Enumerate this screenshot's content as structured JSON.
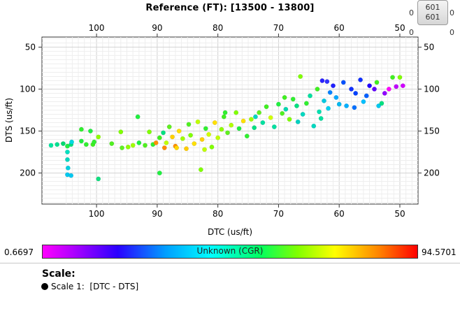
{
  "title": "Reference (FT): [13500 - 13800]",
  "widget": {
    "counter_top": "601",
    "counter_bottom": "601",
    "side_left": "0",
    "side_right": "0"
  },
  "chart_data": {
    "type": "scatter",
    "xlabel": "DTC (us/ft)",
    "ylabel": "DTS (us/ft)",
    "xlim": [
      109,
      47
    ],
    "ylim": [
      237,
      38
    ],
    "x_ticks": [
      100,
      90,
      80,
      70,
      60,
      50
    ],
    "y_ticks": [
      50,
      100,
      150,
      200
    ],
    "grid": true,
    "points": [
      {
        "x": 107.5,
        "y": 167,
        "c": "#00e6a0"
      },
      {
        "x": 106.5,
        "y": 166,
        "c": "#00e090"
      },
      {
        "x": 105.5,
        "y": 165,
        "c": "#00d870"
      },
      {
        "x": 104.8,
        "y": 168,
        "c": "#20f040"
      },
      {
        "x": 104.2,
        "y": 166,
        "c": "#00e080"
      },
      {
        "x": 104.8,
        "y": 175,
        "c": "#00e0c0"
      },
      {
        "x": 104.8,
        "y": 184,
        "c": "#00d8c0"
      },
      {
        "x": 104.7,
        "y": 194,
        "c": "#00d0e0"
      },
      {
        "x": 104.8,
        "y": 202,
        "c": "#00c8f0"
      },
      {
        "x": 104.2,
        "y": 203,
        "c": "#00c8f0"
      },
      {
        "x": 104.1,
        "y": 163,
        "c": "#00d8e0"
      },
      {
        "x": 102.5,
        "y": 162,
        "c": "#20f040"
      },
      {
        "x": 102.5,
        "y": 148,
        "c": "#30f030"
      },
      {
        "x": 101.7,
        "y": 166,
        "c": "#30f030"
      },
      {
        "x": 101.0,
        "y": 150,
        "c": "#20f040"
      },
      {
        "x": 100.6,
        "y": 166,
        "c": "#40f020"
      },
      {
        "x": 100.4,
        "y": 163,
        "c": "#30f030"
      },
      {
        "x": 99.7,
        "y": 207,
        "c": "#10e080"
      },
      {
        "x": 99.7,
        "y": 157,
        "c": "#90ff00"
      },
      {
        "x": 97.5,
        "y": 165,
        "c": "#50f020"
      },
      {
        "x": 96.0,
        "y": 151,
        "c": "#80ff00"
      },
      {
        "x": 95.8,
        "y": 170,
        "c": "#60f020"
      },
      {
        "x": 94.8,
        "y": 169,
        "c": "#90ff00"
      },
      {
        "x": 94.0,
        "y": 167,
        "c": "#a0ff00"
      },
      {
        "x": 93.2,
        "y": 133,
        "c": "#20f040"
      },
      {
        "x": 93.0,
        "y": 164,
        "c": "#20f040"
      },
      {
        "x": 92.0,
        "y": 167,
        "c": "#50f020"
      },
      {
        "x": 91.3,
        "y": 151,
        "c": "#80ff00"
      },
      {
        "x": 90.7,
        "y": 166,
        "c": "#30f030"
      },
      {
        "x": 90.2,
        "y": 164,
        "c": "#ff9000"
      },
      {
        "x": 89.6,
        "y": 158,
        "c": "#40f020"
      },
      {
        "x": 89.6,
        "y": 200,
        "c": "#20f040"
      },
      {
        "x": 89.0,
        "y": 152,
        "c": "#00e080"
      },
      {
        "x": 88.5,
        "y": 164,
        "c": "#c0ff00"
      },
      {
        "x": 88.0,
        "y": 145,
        "c": "#60f020"
      },
      {
        "x": 87.5,
        "y": 157,
        "c": "#ffd000"
      },
      {
        "x": 87.0,
        "y": 168,
        "c": "#ff9000"
      },
      {
        "x": 86.4,
        "y": 150,
        "c": "#ffe000"
      },
      {
        "x": 85.8,
        "y": 159,
        "c": "#a0ff00"
      },
      {
        "x": 85.2,
        "y": 171,
        "c": "#ffcc00"
      },
      {
        "x": 84.5,
        "y": 155,
        "c": "#80ff00"
      },
      {
        "x": 83.9,
        "y": 165,
        "c": "#ffe000"
      },
      {
        "x": 83.3,
        "y": 139,
        "c": "#c0ff00"
      },
      {
        "x": 82.8,
        "y": 196,
        "c": "#80ff00"
      },
      {
        "x": 82.6,
        "y": 160,
        "c": "#ffd000"
      },
      {
        "x": 82.0,
        "y": 147,
        "c": "#30f030"
      },
      {
        "x": 81.5,
        "y": 154,
        "c": "#d0ff00"
      },
      {
        "x": 81.0,
        "y": 169,
        "c": "#80ff00"
      },
      {
        "x": 80.5,
        "y": 140,
        "c": "#ffe000"
      },
      {
        "x": 80.0,
        "y": 158,
        "c": "#c0ff00"
      },
      {
        "x": 79.4,
        "y": 148,
        "c": "#90ff00"
      },
      {
        "x": 79.0,
        "y": 133,
        "c": "#40f020"
      },
      {
        "x": 78.4,
        "y": 152,
        "c": "#60f020"
      },
      {
        "x": 77.8,
        "y": 143,
        "c": "#b0ff00"
      },
      {
        "x": 77.0,
        "y": 128,
        "c": "#80ff00"
      },
      {
        "x": 76.5,
        "y": 147,
        "c": "#20f040"
      },
      {
        "x": 75.8,
        "y": 138,
        "c": "#ffe000"
      },
      {
        "x": 75.2,
        "y": 156,
        "c": "#30f030"
      },
      {
        "x": 74.5,
        "y": 136,
        "c": "#a0ff00"
      },
      {
        "x": 74.0,
        "y": 146,
        "c": "#00e080"
      },
      {
        "x": 73.2,
        "y": 128,
        "c": "#60f020"
      },
      {
        "x": 72.6,
        "y": 140,
        "c": "#00e0a0"
      },
      {
        "x": 72.0,
        "y": 121,
        "c": "#40f020"
      },
      {
        "x": 71.3,
        "y": 134,
        "c": "#d0ff00"
      },
      {
        "x": 70.7,
        "y": 145,
        "c": "#00e0a0"
      },
      {
        "x": 70.0,
        "y": 118,
        "c": "#20f040"
      },
      {
        "x": 69.4,
        "y": 129,
        "c": "#50f020"
      },
      {
        "x": 68.8,
        "y": 124,
        "c": "#00d8b0"
      },
      {
        "x": 68.2,
        "y": 136,
        "c": "#80ff00"
      },
      {
        "x": 67.6,
        "y": 112,
        "c": "#30f030"
      },
      {
        "x": 67.0,
        "y": 120,
        "c": "#00e080"
      },
      {
        "x": 66.4,
        "y": 85,
        "c": "#80ff00"
      },
      {
        "x": 66.0,
        "y": 130,
        "c": "#00d8c0"
      },
      {
        "x": 65.4,
        "y": 117,
        "c": "#30f030"
      },
      {
        "x": 64.8,
        "y": 108,
        "c": "#00e0a0"
      },
      {
        "x": 64.2,
        "y": 144,
        "c": "#00d8c0"
      },
      {
        "x": 63.6,
        "y": 100,
        "c": "#40f020"
      },
      {
        "x": 63.3,
        "y": 127,
        "c": "#00e0b0"
      },
      {
        "x": 62.8,
        "y": 90,
        "c": "#2a20ff"
      },
      {
        "x": 62.5,
        "y": 114,
        "c": "#00c8e0"
      },
      {
        "x": 62.0,
        "y": 91,
        "c": "#3030ff"
      },
      {
        "x": 61.5,
        "y": 104,
        "c": "#0080ff"
      },
      {
        "x": 61.0,
        "y": 96,
        "c": "#2020ff"
      },
      {
        "x": 60.5,
        "y": 110,
        "c": "#00a8ff"
      },
      {
        "x": 60.0,
        "y": 118,
        "c": "#00b8f0"
      },
      {
        "x": 59.3,
        "y": 92,
        "c": "#0050ff"
      },
      {
        "x": 58.8,
        "y": 120,
        "c": "#00b0ff"
      },
      {
        "x": 58.0,
        "y": 100,
        "c": "#1030ff"
      },
      {
        "x": 57.3,
        "y": 105,
        "c": "#0040ff"
      },
      {
        "x": 56.5,
        "y": 89,
        "c": "#1030ff"
      },
      {
        "x": 56.0,
        "y": 115,
        "c": "#00c0ff"
      },
      {
        "x": 55.5,
        "y": 108,
        "c": "#0060ff"
      },
      {
        "x": 55.0,
        "y": 96,
        "c": "#2000ff"
      },
      {
        "x": 54.2,
        "y": 100,
        "c": "#6000ff"
      },
      {
        "x": 53.8,
        "y": 92,
        "c": "#40f020"
      },
      {
        "x": 53.5,
        "y": 120,
        "c": "#00c8f0"
      },
      {
        "x": 53.0,
        "y": 117,
        "c": "#00e080"
      },
      {
        "x": 52.5,
        "y": 105,
        "c": "#9000ff"
      },
      {
        "x": 51.8,
        "y": 100,
        "c": "#ff00ff"
      },
      {
        "x": 51.2,
        "y": 86,
        "c": "#40f020"
      },
      {
        "x": 50.6,
        "y": 97,
        "c": "#c000ff"
      },
      {
        "x": 50.0,
        "y": 86,
        "c": "#80ff00"
      },
      {
        "x": 49.5,
        "y": 96,
        "c": "#d000ff"
      },
      {
        "x": 57.5,
        "y": 122,
        "c": "#0070ff"
      },
      {
        "x": 61.8,
        "y": 123,
        "c": "#00d0f0"
      },
      {
        "x": 63.0,
        "y": 135,
        "c": "#00e0a0"
      },
      {
        "x": 66.8,
        "y": 139,
        "c": "#00d0c0"
      },
      {
        "x": 69.0,
        "y": 110,
        "c": "#40f020"
      },
      {
        "x": 73.8,
        "y": 133,
        "c": "#00d8c0"
      },
      {
        "x": 78.8,
        "y": 128,
        "c": "#30f030"
      },
      {
        "x": 82.2,
        "y": 172,
        "c": "#c0ff00"
      },
      {
        "x": 84.8,
        "y": 142,
        "c": "#50f020"
      },
      {
        "x": 86.8,
        "y": 170,
        "c": "#ffd800"
      },
      {
        "x": 88.8,
        "y": 170,
        "c": "#ff8800"
      }
    ]
  },
  "colorbar": {
    "label": "Unknown (CGR)",
    "min": "0.6697",
    "max": "94.5701"
  },
  "scale": {
    "heading": "Scale:",
    "item": "Scale 1:  [DTC - DTS]"
  }
}
